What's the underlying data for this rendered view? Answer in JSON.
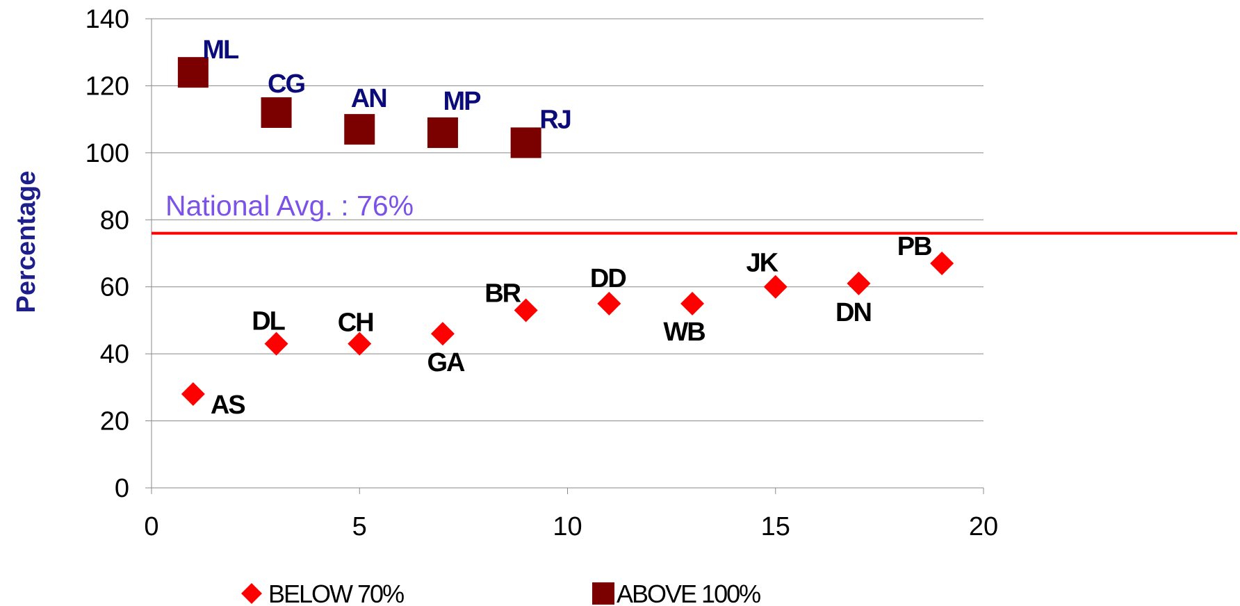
{
  "chart_data": {
    "type": "scatter",
    "title": "",
    "xlabel": "",
    "ylabel": "Percentage",
    "xlim": [
      0,
      20
    ],
    "ylim": [
      0,
      140
    ],
    "x_ticks": [
      "0",
      "5",
      "10",
      "15",
      "20"
    ],
    "y_ticks": [
      "0",
      "20",
      "40",
      "60",
      "80",
      "100",
      "120",
      "140"
    ],
    "grid": "horizontal",
    "legend_position": "bottom",
    "reference_line": {
      "label": "National Avg. : 76%",
      "value": 76,
      "color": "#ff0000"
    },
    "series": [
      {
        "name": "BELOW 70%",
        "marker": "diamond",
        "color": "#ff0000",
        "label_color": "#000000",
        "points": [
          {
            "x": 1,
            "y": 28,
            "label": "AS"
          },
          {
            "x": 3,
            "y": 43,
            "label": "DL"
          },
          {
            "x": 5,
            "y": 43,
            "label": "CH"
          },
          {
            "x": 7,
            "y": 46,
            "label": "GA"
          },
          {
            "x": 9,
            "y": 53,
            "label": "BR"
          },
          {
            "x": 11,
            "y": 55,
            "label": "DD"
          },
          {
            "x": 13,
            "y": 55,
            "label": "WB"
          },
          {
            "x": 15,
            "y": 60,
            "label": "JK"
          },
          {
            "x": 17,
            "y": 61,
            "label": "DN"
          },
          {
            "x": 19,
            "y": 67,
            "label": "PB"
          }
        ]
      },
      {
        "name": "ABOVE 100%",
        "marker": "square",
        "color": "#7b0000",
        "label_color": "#0b0b7a",
        "points": [
          {
            "x": 1,
            "y": 124,
            "label": "ML"
          },
          {
            "x": 3,
            "y": 112,
            "label": "CG"
          },
          {
            "x": 5,
            "y": 107,
            "label": "AN"
          },
          {
            "x": 7,
            "y": 106,
            "label": "MP"
          },
          {
            "x": 9,
            "y": 103,
            "label": "RJ"
          }
        ]
      }
    ]
  }
}
